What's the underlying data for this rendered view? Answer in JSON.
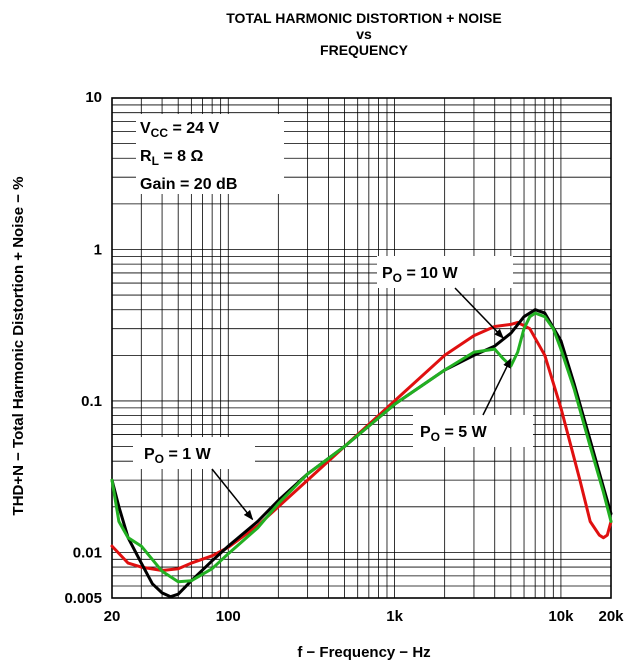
{
  "chart_data": {
    "type": "line",
    "title_lines": [
      "TOTAL HARMONIC DISTORTION + NOISE",
      "vs",
      "FREQUENCY"
    ],
    "xlabel": "f − Frequency − Hz",
    "ylabel": "THD+N − Total Harmonic Distortion + Noise − %",
    "x_scale": "log",
    "y_scale": "log",
    "xlim": [
      20,
      20000
    ],
    "ylim": [
      0.005,
      10
    ],
    "grid": true,
    "x_ticks": [
      {
        "value": 20,
        "label": "20"
      },
      {
        "value": 100,
        "label": "100"
      },
      {
        "value": 1000,
        "label": "1k"
      },
      {
        "value": 10000,
        "label": "10k"
      },
      {
        "value": 20000,
        "label": "20k"
      }
    ],
    "y_ticks": [
      {
        "value": 0.005,
        "label": "0.005"
      },
      {
        "value": 0.01,
        "label": "0.01"
      },
      {
        "value": 0.1,
        "label": "0.1"
      },
      {
        "value": 1,
        "label": "1"
      },
      {
        "value": 10,
        "label": "10"
      }
    ],
    "conditions": {
      "vcc": {
        "main": "V",
        "sub": "CC",
        "rest": " = 24 V"
      },
      "rl": {
        "main": "R",
        "sub": "L",
        "rest": " = 8 Ω"
      },
      "gain": "Gain = 20 dB"
    },
    "annotations": [
      {
        "id": "p10",
        "main": "P",
        "sub": "O",
        "rest": " = 10 W",
        "arrow_to": [
          4500,
          0.26
        ]
      },
      {
        "id": "p5",
        "main": "P",
        "sub": "O",
        "rest": " = 5 W",
        "arrow_to": [
          5000,
          0.19
        ]
      },
      {
        "id": "p1",
        "main": "P",
        "sub": "O",
        "rest": " = 1 W",
        "arrow_to": [
          140,
          0.0165
        ]
      }
    ],
    "series": [
      {
        "color": "#e01010",
        "x": [
          20,
          25,
          30,
          40,
          50,
          60,
          80,
          100,
          150,
          200,
          300,
          500,
          1000,
          2000,
          3000,
          4000,
          5000,
          5500,
          6500,
          8000,
          10000,
          13000,
          15000,
          17000,
          18000,
          19000,
          20000
        ],
        "y": [
          0.011,
          0.0085,
          0.008,
          0.0076,
          0.0078,
          0.0085,
          0.0095,
          0.0108,
          0.015,
          0.02,
          0.03,
          0.05,
          0.1,
          0.2,
          0.27,
          0.31,
          0.32,
          0.33,
          0.3,
          0.2,
          0.09,
          0.03,
          0.016,
          0.013,
          0.0125,
          0.013,
          0.016
        ]
      },
      {
        "color": "#000000",
        "x": [
          20,
          22,
          25,
          30,
          35,
          40,
          45,
          50,
          60,
          80,
          100,
          150,
          200,
          300,
          500,
          1000,
          2000,
          3000,
          4000,
          5000,
          6000,
          7000,
          8000,
          10000,
          12000,
          15000,
          18000,
          20000
        ],
        "y": [
          0.03,
          0.02,
          0.0125,
          0.0085,
          0.0062,
          0.0054,
          0.0051,
          0.0053,
          0.0065,
          0.0088,
          0.011,
          0.016,
          0.022,
          0.033,
          0.05,
          0.095,
          0.16,
          0.2,
          0.23,
          0.28,
          0.36,
          0.4,
          0.38,
          0.25,
          0.13,
          0.055,
          0.027,
          0.018
        ]
      },
      {
        "color": "#22b022",
        "x": [
          20,
          22,
          25,
          30,
          40,
          50,
          60,
          80,
          100,
          150,
          200,
          300,
          500,
          1000,
          2000,
          3000,
          4000,
          4500,
          5000,
          5500,
          6000,
          6500,
          7000,
          8000,
          9000,
          10000,
          12000,
          15000,
          18000,
          20000
        ],
        "y": [
          0.03,
          0.016,
          0.0125,
          0.011,
          0.0075,
          0.0064,
          0.0065,
          0.0078,
          0.0098,
          0.0145,
          0.021,
          0.033,
          0.05,
          0.095,
          0.16,
          0.21,
          0.22,
          0.19,
          0.17,
          0.21,
          0.3,
          0.36,
          0.38,
          0.36,
          0.3,
          0.22,
          0.12,
          0.05,
          0.025,
          0.016
        ]
      }
    ]
  }
}
